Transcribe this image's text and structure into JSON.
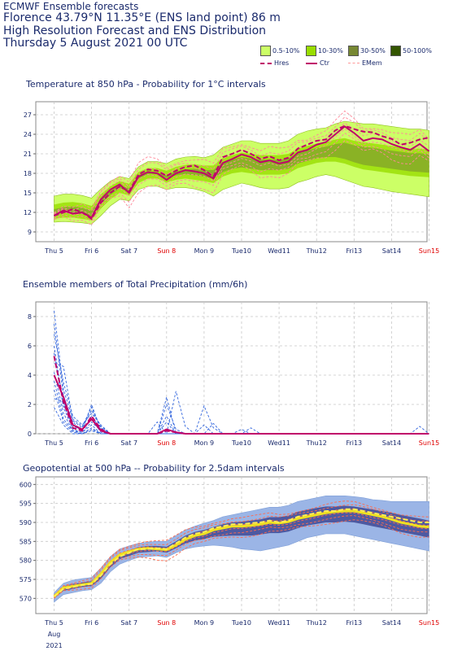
{
  "header": {
    "line1": "ECMWF Ensemble forecasts",
    "line2": "Florence 43.79°N 11.35°E (ENS land point) 86 m",
    "line3": "High Resolution Forecast and ENS Distribution",
    "line4": "Thursday  5 August 2021 00 UTC"
  },
  "legend": {
    "items": [
      {
        "label": "0.5-10%",
        "color": "#ccff66"
      },
      {
        "label": "10-30%",
        "color": "#99dd00"
      },
      {
        "label": "30-50%",
        "color": "#778833"
      },
      {
        "label": "50-100%",
        "color": "#335500"
      }
    ],
    "lines": [
      {
        "label": "Hres",
        "color": "#c0006a",
        "style": "dashed"
      },
      {
        "label": "Ctr",
        "color": "#c0006a",
        "style": "solid"
      },
      {
        "label": "EMem",
        "color": "#ff9999",
        "style": "dashed"
      }
    ]
  },
  "colors": {
    "text": "#1a2a6c",
    "sunday": "#e00000",
    "grid": "#c8c8c8",
    "hres": "#c0006a",
    "ens_temp": "#ff8899",
    "ens_precip": "#3366dd",
    "geo_band_outer": "#9bb5e6",
    "geo_band_inner": "#333b8a"
  },
  "day_labels": [
    "Thu 5",
    "Fri 6",
    "Sat 7",
    "Sun 8",
    "Mon 9",
    "Tue10",
    "Wed11",
    "Thu12",
    "Fri13",
    "Sat14",
    "Sun15"
  ],
  "date_footer": {
    "month": "Aug",
    "year": "2021"
  },
  "chart_data": [
    {
      "type": "area",
      "title": "Temperature at 850 hPa - Probability for 1°C intervals",
      "ylabel": "",
      "ylim": [
        7.5,
        29
      ],
      "yticks": [
        9,
        12,
        15,
        18,
        21,
        24,
        27
      ],
      "x_days": [
        0,
        0.25,
        0.5,
        0.75,
        1,
        1.25,
        1.5,
        1.75,
        2,
        2.25,
        2.5,
        2.75,
        3,
        3.25,
        3.5,
        3.75,
        4,
        4.25,
        4.5,
        4.75,
        5,
        5.25,
        5.5,
        5.75,
        6,
        6.25,
        6.5,
        6.75,
        7,
        7.25,
        7.5,
        7.75,
        8,
        8.25,
        8.5,
        8.75,
        9,
        9.25,
        9.5,
        9.75,
        10
      ],
      "hres": [
        11.5,
        12.0,
        12.5,
        12.0,
        11.0,
        13.5,
        15.0,
        16.0,
        15.2,
        17.8,
        18.6,
        18.4,
        17.6,
        18.4,
        19.0,
        19.2,
        18.5,
        17.5,
        20.5,
        21.0,
        21.6,
        21.0,
        20.2,
        20.6,
        20.0,
        20.4,
        21.8,
        22.4,
        23.0,
        23.2,
        24.6,
        25.3,
        24.8,
        24.4,
        24.3,
        23.7,
        23.3,
        22.4,
        22.7,
        23.2,
        23.5
      ],
      "control": [
        11.5,
        12.3,
        11.8,
        12.0,
        11.2,
        14.0,
        15.5,
        16.3,
        15.0,
        17.5,
        18.2,
        18.0,
        17.0,
        18.0,
        18.5,
        18.3,
        18.0,
        17.2,
        19.6,
        20.2,
        20.9,
        20.5,
        19.7,
        20.0,
        19.5,
        19.8,
        21.2,
        21.6,
        22.4,
        22.8,
        24.0,
        25.2,
        24.2,
        23.0,
        23.4,
        23.2,
        22.5,
        22.0,
        21.6,
        22.5,
        21.4
      ],
      "band_outer_low": [
        10.5,
        10.6,
        10.5,
        10.4,
        10.2,
        11.5,
        13.0,
        14.0,
        13.8,
        15.5,
        16.0,
        16.0,
        15.5,
        15.8,
        15.8,
        15.6,
        15.2,
        14.5,
        15.5,
        16.0,
        16.5,
        16.2,
        15.8,
        15.6,
        15.6,
        15.8,
        16.6,
        17.0,
        17.5,
        17.8,
        17.5,
        17.0,
        16.5,
        16.0,
        15.8,
        15.5,
        15.2,
        15.0,
        14.8,
        14.6,
        14.4
      ],
      "band_outer_high": [
        14.5,
        14.8,
        14.8,
        14.6,
        14.2,
        15.6,
        16.8,
        17.5,
        17.2,
        19.0,
        19.8,
        19.8,
        19.5,
        20.2,
        20.5,
        20.6,
        20.4,
        20.8,
        22.0,
        22.5,
        23.0,
        23.0,
        22.6,
        22.6,
        22.6,
        23.0,
        24.0,
        24.5,
        24.8,
        25.0,
        25.6,
        26.0,
        25.8,
        25.6,
        25.6,
        25.4,
        25.2,
        25.0,
        24.8,
        24.8,
        24.6
      ],
      "band_mid_low": [
        11.0,
        11.2,
        11.2,
        11.0,
        10.8,
        12.6,
        14.0,
        15.0,
        14.6,
        16.5,
        17.2,
        17.2,
        16.6,
        17.0,
        17.2,
        17.0,
        16.8,
        16.5,
        17.5,
        18.0,
        18.2,
        18.0,
        17.8,
        17.8,
        17.8,
        18.0,
        18.8,
        19.2,
        19.6,
        19.8,
        19.8,
        19.5,
        19.0,
        18.6,
        18.4,
        18.2,
        18.0,
        17.8,
        17.6,
        17.5,
        17.4
      ],
      "band_mid_high": [
        13.2,
        13.5,
        13.6,
        13.4,
        13.0,
        14.8,
        16.0,
        16.8,
        16.4,
        18.2,
        18.8,
        18.8,
        18.4,
        19.0,
        19.3,
        19.4,
        19.2,
        19.2,
        20.4,
        20.8,
        21.2,
        21.0,
        20.8,
        20.8,
        20.8,
        21.0,
        21.8,
        22.2,
        22.6,
        22.8,
        23.2,
        23.4,
        23.0,
        22.8,
        22.6,
        22.4,
        22.2,
        22.0,
        21.8,
        21.8,
        21.6
      ]
    },
    {
      "type": "line",
      "title": "Ensemble members of Total Precipitation (mm/6h)",
      "ylabel": "",
      "ylim": [
        0,
        9
      ],
      "yticks": [
        0,
        2,
        4,
        6,
        8
      ],
      "x_days": [
        0,
        0.25,
        0.5,
        0.75,
        1,
        1.25,
        1.5,
        1.75,
        2,
        2.25,
        2.5,
        2.75,
        3,
        3.25,
        3.5,
        3.75,
        4,
        4.25,
        4.5,
        4.75,
        5,
        5.25,
        5.5,
        5.75,
        6,
        6.25,
        6.5,
        6.75,
        7,
        7.25,
        7.5,
        7.75,
        8,
        8.25,
        8.5,
        8.75,
        9,
        9.25,
        9.5,
        9.75,
        10
      ],
      "hres": [
        5.3,
        2.2,
        0.4,
        0.2,
        1.2,
        0.3,
        0.0,
        0,
        0,
        0,
        0,
        0,
        0.2,
        0.1,
        0,
        0,
        0,
        0,
        0,
        0,
        0,
        0,
        0,
        0,
        0,
        0,
        0,
        0,
        0,
        0,
        0,
        0,
        0,
        0,
        0,
        0,
        0,
        0,
        0,
        0,
        0
      ],
      "control": [
        4.0,
        2.5,
        0.6,
        0.3,
        1.0,
        0.2,
        0.0,
        0,
        0,
        0,
        0,
        0,
        0.3,
        0.1,
        0,
        0,
        0,
        0,
        0,
        0,
        0,
        0,
        0,
        0,
        0,
        0,
        0,
        0,
        0,
        0,
        0,
        0,
        0,
        0,
        0,
        0,
        0,
        0,
        0,
        0,
        0
      ],
      "members": [
        [
          8.4,
          3.0,
          1.0,
          0.5,
          1.8,
          0.4,
          0,
          0,
          0,
          0,
          0,
          0,
          0,
          0,
          0,
          0,
          0,
          0,
          0,
          0,
          0,
          0,
          0,
          0,
          0,
          0,
          0,
          0,
          0,
          0,
          0,
          0,
          0,
          0,
          0,
          0,
          0,
          0,
          0,
          0,
          0
        ],
        [
          7.5,
          2.6,
          0.8,
          0.2,
          2.0,
          0.2,
          0,
          0,
          0,
          0,
          0,
          0,
          0,
          2.9,
          0.5,
          0,
          0,
          0,
          0,
          0,
          0,
          0,
          0,
          0,
          0,
          0,
          0,
          0,
          0,
          0,
          0,
          0,
          0,
          0,
          0,
          0,
          0,
          0,
          0,
          0,
          0
        ],
        [
          6.8,
          3.5,
          1.2,
          0.6,
          1.4,
          0.6,
          0,
          0,
          0,
          0,
          0,
          0.8,
          0,
          0,
          0,
          0,
          0,
          0,
          0,
          0,
          0,
          0,
          0,
          0,
          0,
          0,
          0,
          0,
          0,
          0,
          0,
          0,
          0,
          0,
          0,
          0,
          0,
          0,
          0,
          0,
          0
        ],
        [
          6.0,
          2.0,
          0.5,
          0.3,
          1.0,
          0.1,
          0,
          0,
          0,
          0,
          0,
          0,
          0,
          0,
          0,
          0,
          1.9,
          0.4,
          0,
          0,
          0,
          0,
          0,
          0,
          0,
          0,
          0,
          0,
          0,
          0,
          0,
          0,
          0,
          0,
          0,
          0,
          0,
          0,
          0,
          0,
          0
        ],
        [
          5.5,
          1.8,
          0.3,
          0.1,
          0.8,
          0.2,
          0,
          0,
          0,
          0,
          0,
          0,
          2.5,
          0,
          0,
          0,
          0,
          0.7,
          0,
          0,
          0,
          0,
          0,
          0,
          0,
          0,
          0,
          0,
          0,
          0,
          0,
          0,
          0,
          0,
          0,
          0,
          0,
          0,
          0,
          0,
          0
        ],
        [
          4.8,
          4.6,
          0.9,
          0.4,
          1.6,
          0.5,
          0,
          0,
          0,
          0,
          0,
          0,
          0,
          0,
          0,
          0,
          0,
          0,
          0,
          0,
          0,
          0.4,
          0,
          0,
          0,
          0,
          0,
          0,
          0,
          0,
          0,
          0,
          0,
          0,
          0,
          0,
          0,
          0,
          0,
          0,
          0
        ],
        [
          4.2,
          1.4,
          0.2,
          0.1,
          0.6,
          0,
          0,
          0,
          0,
          0,
          0,
          0,
          2.0,
          0.3,
          0,
          0,
          0,
          0,
          0,
          0,
          0,
          0,
          0,
          0,
          0,
          0,
          0,
          0,
          0,
          0,
          0,
          0,
          0,
          0,
          0,
          0,
          0,
          0,
          0,
          0,
          0
        ],
        [
          3.6,
          1.0,
          0.2,
          0,
          0.4,
          0,
          0,
          0,
          0,
          0,
          0,
          0,
          0,
          0,
          0,
          0,
          0,
          0,
          0,
          0,
          0,
          0,
          0,
          0,
          0,
          0,
          0,
          0,
          0,
          0,
          0,
          0,
          0,
          0,
          0,
          0,
          0,
          0,
          0,
          0.5,
          0
        ],
        [
          3.0,
          0.8,
          0.1,
          0,
          0.3,
          0,
          0,
          0,
          0,
          0,
          0,
          0,
          1.2,
          0,
          0,
          0,
          0.6,
          0,
          0,
          0,
          0.3,
          0,
          0,
          0,
          0,
          0,
          0,
          0,
          0,
          0,
          0,
          0,
          0,
          0,
          0,
          0,
          0,
          0,
          0,
          0,
          0
        ],
        [
          2.4,
          2.2,
          0.6,
          0.2,
          1.2,
          0.3,
          0,
          0,
          0,
          0,
          0,
          0,
          0,
          0,
          0,
          0,
          0,
          0,
          0,
          0,
          0,
          0,
          0,
          0,
          0,
          0,
          0,
          0,
          0,
          0,
          0,
          0,
          0,
          0,
          0,
          0,
          0,
          0,
          0,
          0,
          0
        ],
        [
          1.8,
          0.6,
          0,
          0,
          0.2,
          0,
          0,
          0,
          0,
          0,
          0,
          0,
          0.8,
          0,
          0,
          0,
          0,
          0,
          0,
          0,
          0,
          0,
          0,
          0,
          0,
          0,
          0,
          0,
          0,
          0,
          0,
          0,
          0,
          0,
          0,
          0,
          0,
          0,
          0,
          0,
          0
        ]
      ]
    },
    {
      "type": "area",
      "title": "Geopotential at 500 hPa -- Probability for 2.5dam intervals",
      "ylabel": "",
      "ylim": [
        566,
        602
      ],
      "yticks": [
        570,
        575,
        580,
        585,
        590,
        595,
        600
      ],
      "x_days": [
        0,
        0.25,
        0.5,
        0.75,
        1,
        1.25,
        1.5,
        1.75,
        2,
        2.25,
        2.5,
        2.75,
        3,
        3.25,
        3.5,
        3.75,
        4,
        4.25,
        4.5,
        4.75,
        5,
        5.25,
        5.5,
        5.75,
        6,
        6.25,
        6.5,
        6.75,
        7,
        7.25,
        7.5,
        7.75,
        8,
        8.25,
        8.5,
        8.75,
        9,
        9.25,
        9.5,
        9.75,
        10
      ],
      "hres": [
        570.5,
        572.5,
        573.0,
        573.5,
        573.8,
        576.0,
        579.0,
        581.0,
        582.0,
        583.0,
        583.0,
        583.2,
        583.0,
        584.5,
        586.0,
        587.0,
        587.5,
        588.5,
        589.0,
        589.5,
        589.5,
        589.8,
        590.0,
        590.5,
        590.0,
        590.5,
        591.5,
        592.0,
        592.5,
        593.0,
        593.0,
        593.5,
        593.5,
        593.0,
        592.5,
        592.0,
        591.5,
        591.0,
        590.5,
        590.0,
        590.0
      ],
      "control": [
        570.5,
        572.8,
        573.2,
        573.6,
        574.0,
        576.5,
        579.5,
        581.5,
        582.3,
        583.0,
        583.2,
        583.0,
        582.8,
        584.0,
        585.5,
        586.5,
        587.0,
        588.0,
        588.5,
        589.0,
        589.0,
        589.2,
        589.5,
        590.0,
        589.8,
        590.2,
        591.0,
        591.5,
        592.0,
        592.5,
        592.8,
        593.0,
        593.0,
        592.5,
        592.0,
        591.5,
        590.8,
        590.0,
        589.5,
        589.0,
        588.8
      ],
      "band_outer_low": [
        569.0,
        571.0,
        571.5,
        572.0,
        572.3,
        574.0,
        577.0,
        579.0,
        580.0,
        580.8,
        581.0,
        581.2,
        580.8,
        582.0,
        583.0,
        583.5,
        583.8,
        584.0,
        583.8,
        583.5,
        583.0,
        582.8,
        582.5,
        583.0,
        583.5,
        584.0,
        585.0,
        586.0,
        586.5,
        587.0,
        587.0,
        587.0,
        586.5,
        586.0,
        585.5,
        585.0,
        584.5,
        584.0,
        583.5,
        583.0,
        582.5
      ],
      "band_outer_high": [
        571.5,
        574.0,
        574.8,
        575.2,
        575.5,
        578.0,
        581.0,
        583.0,
        583.8,
        584.5,
        584.8,
        585.0,
        585.0,
        586.5,
        588.0,
        589.0,
        589.8,
        590.5,
        591.5,
        592.0,
        592.5,
        593.0,
        593.5,
        594.0,
        594.0,
        594.5,
        595.5,
        596.0,
        596.5,
        597.0,
        597.0,
        597.0,
        596.8,
        596.5,
        596.0,
        595.8,
        595.5,
        595.5,
        595.5,
        595.5,
        595.5
      ],
      "band_mid_low": [
        570.0,
        572.0,
        572.5,
        573.0,
        573.2,
        575.2,
        578.2,
        580.3,
        581.2,
        582.0,
        582.2,
        582.4,
        582.0,
        583.2,
        584.5,
        585.2,
        585.6,
        586.2,
        586.4,
        586.5,
        586.5,
        586.5,
        586.8,
        587.2,
        587.2,
        587.6,
        588.5,
        589.2,
        589.6,
        590.0,
        590.0,
        590.2,
        590.0,
        589.5,
        589.0,
        588.5,
        588.0,
        587.5,
        587.0,
        586.5,
        586.0
      ],
      "band_mid_high": [
        571.0,
        573.2,
        573.8,
        574.2,
        574.5,
        576.8,
        579.8,
        581.8,
        582.6,
        583.5,
        583.8,
        583.8,
        583.6,
        585.0,
        586.5,
        587.5,
        588.0,
        588.8,
        589.5,
        590.0,
        590.2,
        590.5,
        590.8,
        591.4,
        591.4,
        591.8,
        592.8,
        593.4,
        593.8,
        594.2,
        594.2,
        594.4,
        594.2,
        593.8,
        593.4,
        593.0,
        592.5,
        592.0,
        591.5,
        591.0,
        590.5
      ]
    }
  ],
  "panels": {
    "temp": {
      "title": "Temperature at 850 hPa - Probability for 1°C intervals"
    },
    "precip": {
      "title": "Ensemble members of Total Precipitation (mm/6h)"
    },
    "geo": {
      "title": "Geopotential at 500 hPa -- Probability for 2.5dam intervals"
    }
  }
}
